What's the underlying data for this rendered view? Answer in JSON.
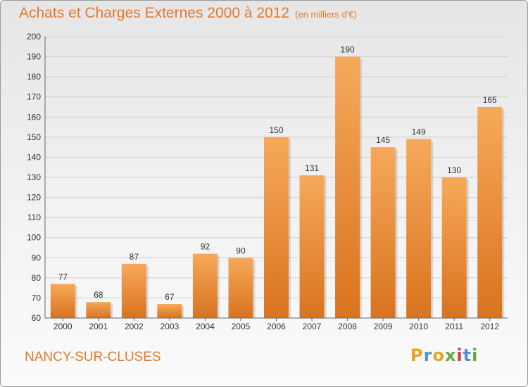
{
  "header": {
    "title": "Achats et Charges Externes 2000 à 2012",
    "unit": "(en milliers d'€)"
  },
  "footer": {
    "city": "NANCY-SUR-CLUSES",
    "logo_text": "Proxiti",
    "logo_colors": [
      "#e8a321",
      "#4f8fd6",
      "#e8a321",
      "#6aa83a",
      "#d63b3b",
      "#4f8fd6",
      "#6aa83a"
    ]
  },
  "chart_data": {
    "type": "bar",
    "title": "Achats et Charges Externes 2000 à 2012",
    "subtitle": "(en milliers d'€)",
    "xlabel": "",
    "ylabel": "",
    "categories": [
      "2000",
      "2001",
      "2002",
      "2003",
      "2004",
      "2005",
      "2006",
      "2007",
      "2008",
      "2009",
      "2010",
      "2011",
      "2012"
    ],
    "values": [
      77,
      68,
      87,
      67,
      92,
      90,
      150,
      131,
      190,
      145,
      149,
      130,
      165
    ],
    "ylim": [
      60,
      200
    ],
    "yticks": [
      60,
      70,
      80,
      90,
      100,
      110,
      120,
      130,
      140,
      150,
      160,
      170,
      180,
      190,
      200
    ],
    "grid": true,
    "data_labels": true,
    "colors": {
      "bar_light": "#f6a95a",
      "bar_dark": "#d9731f",
      "grid": "#cfcfcf",
      "axis_text": "#333333"
    }
  }
}
